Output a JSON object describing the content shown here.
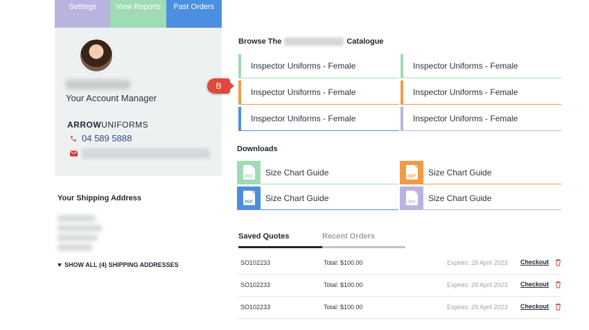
{
  "nav": {
    "settings": "Settings",
    "reports": "View Reports",
    "orders": "Past Orders"
  },
  "account": {
    "title": "Your Account Manager",
    "brand_bold": "ARROW",
    "brand_rest": "UNIFORMS",
    "phone": "04 589 5888"
  },
  "shipping": {
    "title": "Your Shipping Address",
    "show_all": "SHOW ALL (4) SHIPPING ADDRESSES"
  },
  "browse": {
    "title_prefix": "Browse The",
    "title_suffix": "Catalogue",
    "items": [
      {
        "label": "Inspector Uniforms - Female",
        "color": "#9fdcb3"
      },
      {
        "label": "Inspector Uniforms - Female",
        "color": "#9fdcb3"
      },
      {
        "label": "Inspector Uniforms - Female",
        "color": "#f39a45"
      },
      {
        "label": "Inspector Uniforms - Female",
        "color": "#f39a45"
      },
      {
        "label": "Inspector Uniforms - Female",
        "color": "#4c8fe0"
      },
      {
        "label": "Inspector Uniforms - Female",
        "color": "#b9b4df"
      }
    ]
  },
  "badge": {
    "label": "B"
  },
  "downloads": {
    "title": "Downloads",
    "pdf_label": "PDF",
    "items": [
      {
        "label": "Size Chart Guide",
        "color": "#9fdcb3"
      },
      {
        "label": "Size Chart Guide",
        "color": "#f39a45"
      },
      {
        "label": "Size Chart Guide",
        "color": "#4c8fe0"
      },
      {
        "label": "Size Chart Guide",
        "color": "#b9b4df"
      }
    ]
  },
  "tabs": {
    "saved": "Saved Quotes",
    "recent": "Recent Orders"
  },
  "quotes": [
    {
      "id": "SO102233",
      "total": "Total: $100.00",
      "expires": "Expires: 29 April 2023",
      "action": "Checkout"
    },
    {
      "id": "SO102233",
      "total": "Total: $100.00",
      "expires": "Expires: 29 April 2023",
      "action": "Checkout"
    },
    {
      "id": "SO102233",
      "total": "Total: $100.00",
      "expires": "Expires: 29 April 2023",
      "action": "Checkout"
    }
  ],
  "colors": {
    "green": "#9fdcb3",
    "orange": "#f39a45",
    "blue": "#4c8fe0",
    "purple": "#b9b4df",
    "badge": "#e0483c",
    "navy": "#1d2733"
  }
}
